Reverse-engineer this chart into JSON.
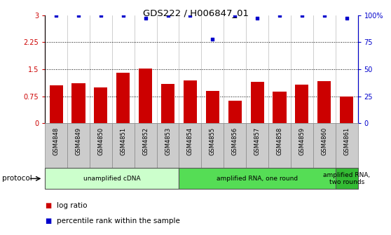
{
  "title": "GDS222 / H006847_01",
  "samples": [
    "GSM4848",
    "GSM4849",
    "GSM4850",
    "GSM4851",
    "GSM4852",
    "GSM4853",
    "GSM4854",
    "GSM4855",
    "GSM4856",
    "GSM4857",
    "GSM4858",
    "GSM4859",
    "GSM4860",
    "GSM4861"
  ],
  "log_ratio": [
    1.05,
    1.12,
    1.0,
    1.4,
    1.52,
    1.1,
    1.2,
    0.9,
    0.62,
    1.15,
    0.88,
    1.08,
    1.18,
    0.75
  ],
  "percentile_rank": [
    100,
    100,
    100,
    100,
    97,
    100,
    100,
    78,
    100,
    97,
    100,
    100,
    100,
    97
  ],
  "bar_color": "#cc0000",
  "dot_color": "#0000cc",
  "ylim_left": [
    0,
    3.0
  ],
  "ylim_right": [
    0,
    100
  ],
  "yticks_left": [
    0,
    0.75,
    1.5,
    2.25,
    3.0
  ],
  "yticks_right": [
    0,
    25,
    50,
    75,
    100
  ],
  "ytick_labels_left": [
    "0",
    "0.75",
    "1.5",
    "2.25",
    "3"
  ],
  "ytick_labels_right": [
    "0",
    "25",
    "50",
    "75",
    "100%"
  ],
  "hlines": [
    0.75,
    1.5,
    2.25
  ],
  "protocol_groups": [
    {
      "label": "unamplified cDNA",
      "start": 0,
      "end": 5,
      "color": "#ccffcc"
    },
    {
      "label": "amplified RNA, one round",
      "start": 6,
      "end": 12,
      "color": "#55dd55"
    },
    {
      "label": "amplified RNA,\ntwo rounds",
      "start": 13,
      "end": 13,
      "color": "#33bb33"
    }
  ],
  "protocol_label": "protocol",
  "legend_items": [
    {
      "label": "log ratio",
      "color": "#cc0000"
    },
    {
      "label": "percentile rank within the sample",
      "color": "#0000cc"
    }
  ],
  "tick_bg_color": "#cccccc",
  "fig_width": 5.58,
  "fig_height": 3.36
}
